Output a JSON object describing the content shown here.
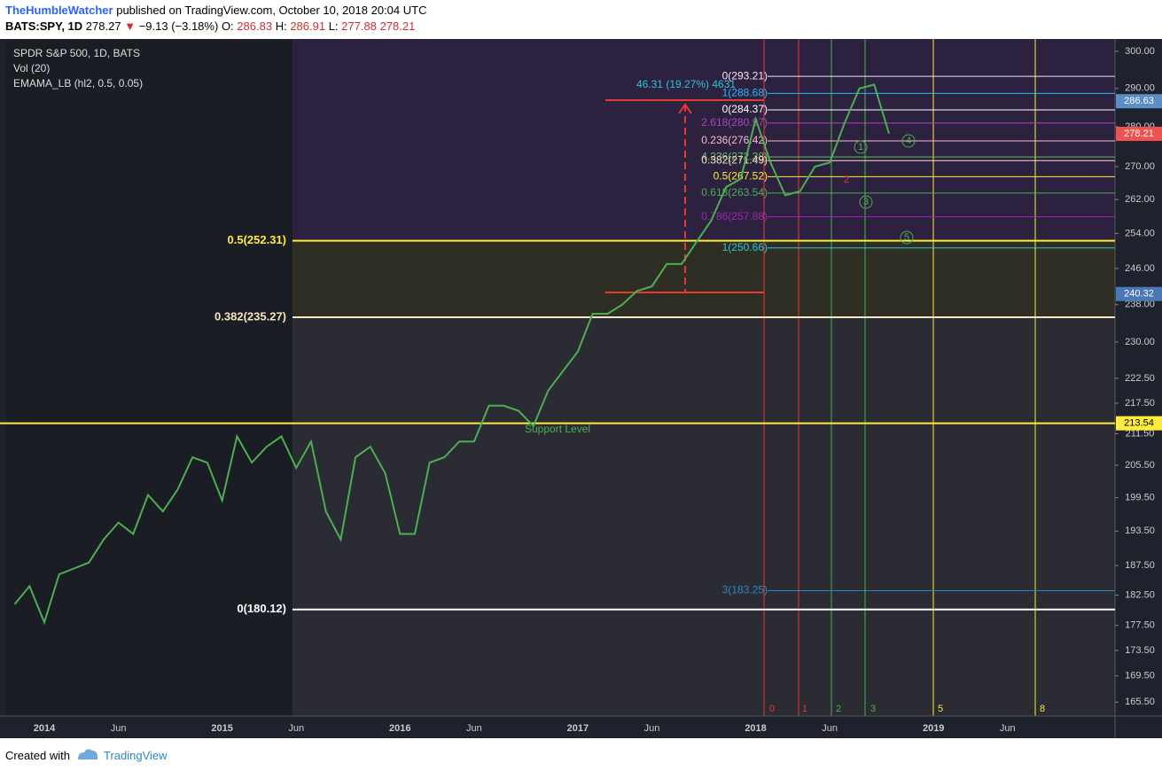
{
  "header": {
    "author": "TheHumbleWatcher",
    "published": "published on TradingView.com, October 10, 2018 20:04 UTC",
    "symbol": "BATS:SPY, 1D",
    "last": 278.27,
    "change": "−9.13 (−3.18%)",
    "ohlc": [
      {
        "key": "O:",
        "value": 286.83
      },
      {
        "key": "H:",
        "value": 286.91
      },
      {
        "key": "L:",
        "value": 277.88
      }
    ],
    "close": 278.21
  },
  "footer": {
    "created": "Created with",
    "brand": "TradingView"
  },
  "chart_data": {
    "type": "line",
    "title": "SPDR S&P 500, 1D, BATS",
    "indicators": [
      "Vol (20)",
      "EMAMA_LB (hl2, 0.5, 0.05)"
    ],
    "log_scale": true,
    "color": "#4caf50",
    "categories": [
      null,
      null,
      "2014",
      null,
      null,
      null,
      null,
      "Jun",
      null,
      null,
      null,
      null,
      null,
      null,
      "2015",
      null,
      null,
      null,
      null,
      "Jun",
      null,
      null,
      null,
      null,
      null,
      null,
      "2016",
      null,
      null,
      null,
      null,
      "Jun",
      null,
      null,
      null,
      null,
      null,
      null,
      "2017",
      null,
      null,
      null,
      null,
      "Jun",
      null,
      null,
      null,
      null,
      null,
      null,
      "2018",
      null,
      null,
      null,
      null,
      "Jun",
      null,
      null,
      null,
      null,
      null,
      null,
      "2019",
      null,
      null,
      null,
      null,
      "Jun",
      null,
      null,
      null,
      null,
      null,
      null
    ],
    "values": [
      181,
      184,
      178,
      186,
      187,
      188,
      192,
      195,
      193,
      200,
      197,
      201,
      207,
      206,
      199,
      211,
      206,
      209,
      211,
      205,
      210,
      197,
      192,
      207,
      209,
      204,
      193,
      193,
      206,
      207,
      210,
      210,
      217,
      217,
      216,
      213,
      220,
      224,
      228,
      236,
      236,
      238,
      241,
      242,
      247,
      247,
      252,
      257,
      265,
      267,
      282,
      271,
      263,
      264,
      270,
      271,
      281,
      290,
      291,
      278.27,
      null,
      null,
      null,
      null,
      null,
      null,
      null,
      null,
      null,
      null,
      null,
      null,
      null,
      null
    ],
    "ylim": [
      163.4,
      303.4
    ],
    "yticks": [
      {
        "value": 165.5,
        "label": "165.50"
      },
      {
        "value": 169.5,
        "label": "169.50"
      },
      {
        "value": 173.5,
        "label": "173.50"
      },
      {
        "value": 177.5,
        "label": "177.50"
      },
      {
        "value": 182.5,
        "label": "182.50"
      },
      {
        "value": 187.5,
        "label": "187.50"
      },
      {
        "value": 193.5,
        "label": "193.50"
      },
      {
        "value": 199.5,
        "label": "199.50"
      },
      {
        "value": 205.5,
        "label": "205.50"
      },
      {
        "value": 211.5,
        "label": "211.50"
      },
      {
        "value": 217.5,
        "label": "217.50"
      },
      {
        "value": 222.5,
        "label": "222.50"
      },
      {
        "value": 230,
        "label": "230.00"
      },
      {
        "value": 238,
        "label": "238.00"
      },
      {
        "value": 246,
        "label": "246.00"
      },
      {
        "value": 254,
        "label": "254.00"
      },
      {
        "value": 262,
        "label": "262.00"
      },
      {
        "value": 270,
        "label": "270.00"
      },
      {
        "value": 280,
        "label": "280.00"
      },
      {
        "value": 290,
        "label": "290.00"
      },
      {
        "value": 300,
        "label": "300.00"
      }
    ],
    "price_tags": [
      {
        "value": 286.63,
        "color": "#5b8ec4"
      },
      {
        "value": 278.21,
        "color": "#ef5350"
      },
      {
        "value": 240.32,
        "color": "#4a78b5"
      },
      {
        "value": 213.54,
        "color": "#ffeb3b",
        "line": true
      }
    ],
    "retracement_levels": [
      {
        "label": "0.5(252.31)",
        "value": 252.31,
        "color": "#ffeb3b"
      },
      {
        "label": "0.382(235.27)",
        "value": 235.27,
        "color": "#f5e6c0"
      },
      {
        "label": "0(180.12)",
        "value": 180.12,
        "color": "#ffffff"
      }
    ],
    "extension_levels": [
      {
        "label": "0(293.21)",
        "value": 293.21,
        "color": "#f3e5f5"
      },
      {
        "label": "1(288.68)",
        "value": 288.68,
        "color": "#29b6f6"
      },
      {
        "label": "0(284.37)",
        "value": 284.37,
        "color": "#ffffff"
      },
      {
        "label": "2.618(280.97)",
        "value": 280.97,
        "color": "#ab47bc"
      },
      {
        "label": "0.236(276.42)",
        "value": 276.42,
        "color": "#f8bbd0"
      },
      {
        "label": "4.236(272.38)",
        "value": 272.38,
        "color": "#66bb6a"
      },
      {
        "label": "0.382(271.49)",
        "value": 271.49,
        "color": "#f5e6c0"
      },
      {
        "label": "0.5(267.52)",
        "value": 267.52,
        "color": "#ffeb3b"
      },
      {
        "label": "0.618(263.54)",
        "value": 263.54,
        "color": "#4caf50"
      },
      {
        "label": "0.786(257.88)",
        "value": 257.88,
        "color": "#9c27b0"
      },
      {
        "label": "1(250.66)",
        "value": 250.66,
        "color": "#26c6da"
      },
      {
        "label": "3(183.25)",
        "value": 183.25,
        "color": "#2e86c1"
      }
    ],
    "annotations": [
      "46.31 (19.27%) 4631",
      "Support Level"
    ],
    "wave_labels": [
      "1",
      "2",
      "3",
      "4",
      "5"
    ],
    "cycle_labels": [
      "0",
      "1",
      "2",
      "3",
      "5",
      "8"
    ]
  }
}
